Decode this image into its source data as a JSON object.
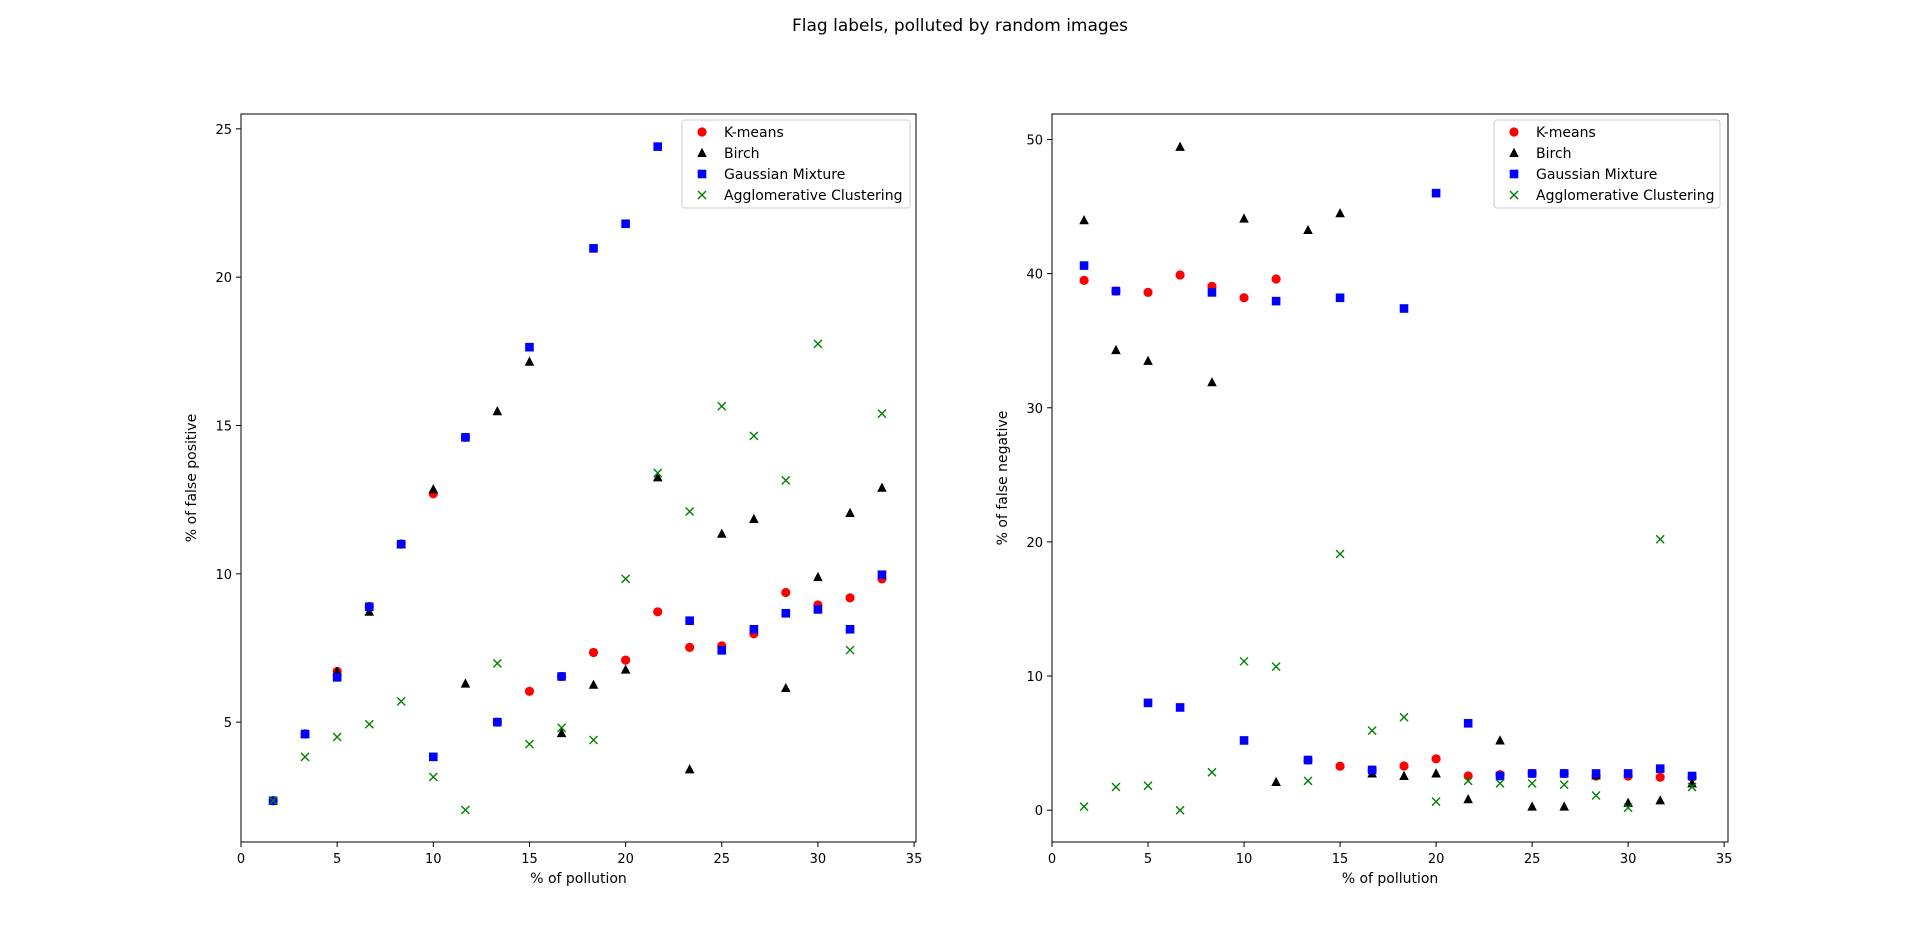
{
  "figure": {
    "title": "Flag labels, polluted by random images"
  },
  "colors": {
    "kmeans": "#ff0000",
    "birch": "#000000",
    "gmm": "#0000ff",
    "agglo": "#008000"
  },
  "chart_data": [
    {
      "type": "scatter",
      "title": "",
      "xlabel": "% of pollution",
      "ylabel": "% of false positive",
      "xlim": [
        0,
        35.1
      ],
      "ylim": [
        0.96,
        25.5
      ],
      "xticks": [
        0,
        5,
        10,
        15,
        20,
        25,
        30,
        35
      ],
      "yticks": [
        5,
        10,
        15,
        20,
        25
      ],
      "xtick_labels": [
        "0",
        "5",
        "10",
        "15",
        "20",
        "25",
        "30",
        "35"
      ],
      "ytick_labels": [
        "5",
        "10",
        "15",
        "20",
        "25"
      ],
      "legend": {
        "placement": "top-right",
        "entries": [
          "K-means",
          "Birch",
          "Gaussian Mixture",
          "Agglomerative Clustering"
        ]
      },
      "x": [
        1.67,
        3.33,
        5,
        6.67,
        8.33,
        10,
        11.67,
        13.33,
        15,
        16.67,
        18.33,
        20,
        21.67,
        23.33,
        25,
        26.67,
        28.33,
        30,
        31.67,
        33.33
      ],
      "series": [
        {
          "name": "K-means",
          "marker": "circle",
          "color_key": "kmeans",
          "values": [
            2.35,
            4.6,
            6.71,
            8.9,
            11.0,
            12.7,
            14.6,
            5.0,
            6.04,
            6.54,
            7.35,
            7.09,
            8.72,
            7.52,
            7.57,
            7.98,
            9.37,
            8.95,
            9.19,
            9.83
          ]
        },
        {
          "name": "Birch",
          "marker": "triangle",
          "color_key": "birch",
          "values": [
            2.35,
            4.6,
            6.7,
            8.72,
            11.0,
            12.85,
            6.3,
            15.48,
            17.15,
            4.63,
            6.26,
            6.77,
            13.25,
            3.41,
            11.35,
            11.85,
            6.15,
            9.89,
            12.05,
            12.9
          ]
        },
        {
          "name": "Gaussian Mixture",
          "marker": "square",
          "color_key": "gmm",
          "values": [
            2.35,
            4.6,
            6.51,
            8.89,
            11.0,
            3.83,
            14.6,
            5.0,
            17.64,
            6.54,
            20.97,
            21.8,
            24.4,
            8.42,
            7.42,
            8.13,
            8.67,
            8.8,
            8.13,
            9.97
          ]
        },
        {
          "name": "Agglomerative Clustering",
          "marker": "x",
          "color_key": "agglo",
          "values": [
            2.35,
            3.83,
            4.5,
            4.93,
            5.7,
            3.15,
            2.04,
            6.98,
            4.26,
            4.81,
            4.4,
            9.83,
            13.4,
            12.1,
            15.65,
            14.65,
            13.15,
            17.75,
            7.43,
            15.4
          ]
        }
      ]
    },
    {
      "type": "scatter",
      "title": "",
      "xlabel": "% of pollution",
      "ylabel": "% of false negative",
      "xlim": [
        0,
        35.2
      ],
      "ylim": [
        -2.37,
        51.9
      ],
      "xticks": [
        0,
        5,
        10,
        15,
        20,
        25,
        30,
        35
      ],
      "yticks": [
        0,
        10,
        20,
        30,
        40,
        50
      ],
      "xtick_labels": [
        "0",
        "5",
        "10",
        "15",
        "20",
        "25",
        "30",
        "35"
      ],
      "ytick_labels": [
        "0",
        "10",
        "20",
        "30",
        "40",
        "50"
      ],
      "legend": {
        "placement": "top-right",
        "entries": [
          "K-means",
          "Birch",
          "Gaussian Mixture",
          "Agglomerative Clustering"
        ]
      },
      "x": [
        1.67,
        3.33,
        5,
        6.67,
        8.33,
        10,
        11.67,
        13.33,
        15,
        16.67,
        18.33,
        20,
        21.67,
        23.33,
        25,
        26.67,
        28.33,
        30,
        31.67,
        33.33
      ],
      "series": [
        {
          "name": "K-means",
          "marker": "circle",
          "color_key": "kmeans",
          "values": [
            39.5,
            38.7,
            38.6,
            39.9,
            39.05,
            38.2,
            39.6,
            3.74,
            3.28,
            3.0,
            3.3,
            3.83,
            2.55,
            2.65,
            2.74,
            2.74,
            2.55,
            2.55,
            2.46,
            2.46
          ]
        },
        {
          "name": "Birch",
          "marker": "triangle",
          "color_key": "birch",
          "values": [
            43.98,
            34.3,
            33.5,
            49.45,
            31.9,
            44.1,
            2.1,
            43.25,
            44.5,
            2.74,
            2.55,
            2.74,
            0.82,
            5.2,
            0.27,
            0.27,
            2.6,
            0.55,
            0.73,
            2.0
          ]
        },
        {
          "name": "Gaussian Mixture",
          "marker": "square",
          "color_key": "gmm",
          "values": [
            40.6,
            38.7,
            8.0,
            7.66,
            38.6,
            5.2,
            37.95,
            3.74,
            38.2,
            3.0,
            37.4,
            46.0,
            6.48,
            2.55,
            2.74,
            2.74,
            2.74,
            2.74,
            3.1,
            2.55
          ]
        },
        {
          "name": "Agglomerative Clustering",
          "marker": "x",
          "color_key": "agglo",
          "values": [
            0.27,
            1.73,
            1.82,
            0.0,
            2.83,
            11.1,
            10.7,
            2.19,
            19.1,
            5.93,
            6.93,
            0.64,
            2.19,
            2.0,
            2.0,
            1.9,
            1.1,
            0.18,
            20.2,
            1.73
          ]
        }
      ]
    }
  ]
}
